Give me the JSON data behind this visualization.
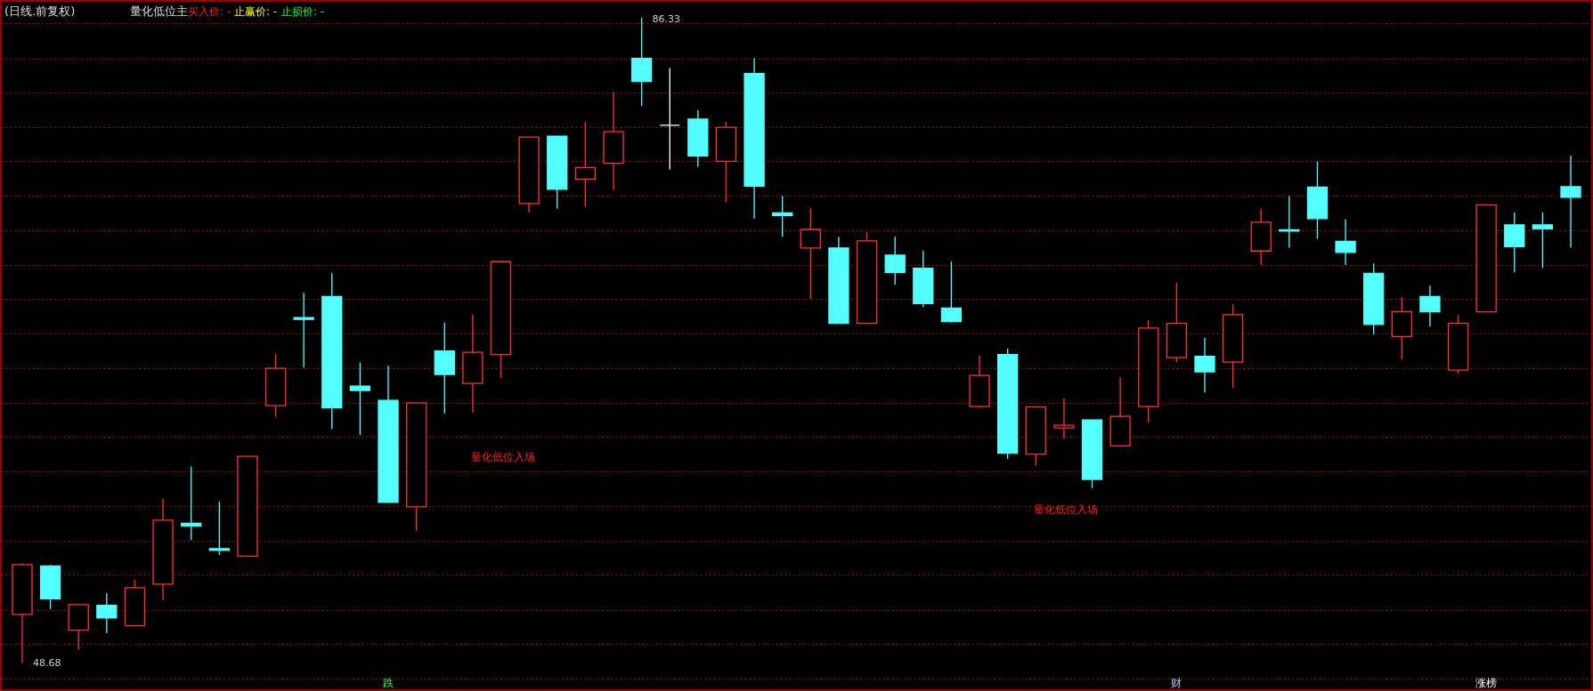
{
  "chart_data": {
    "type": "candlestick",
    "title": "(日线.前复权)",
    "subtitle": "量化低位主",
    "categories": [
      null,
      null,
      null,
      null,
      null,
      null,
      null,
      null,
      null,
      null,
      null,
      null,
      null,
      null,
      null,
      null,
      null,
      null,
      null,
      null,
      null,
      null,
      null,
      null,
      null,
      null,
      null,
      null,
      null,
      null,
      null,
      null,
      null,
      null,
      null,
      null,
      null,
      null,
      null,
      null,
      null,
      null,
      null,
      null,
      null,
      null,
      null,
      null,
      null,
      null,
      null,
      null,
      null,
      null,
      null,
      null
    ],
    "ohlc": [
      [
        51.52,
        54.5,
        48.68,
        54.42
      ],
      [
        54.34,
        54.4,
        51.83,
        52.43
      ],
      [
        50.59,
        52.09,
        49.45,
        52.09
      ],
      [
        52.04,
        52.76,
        50.43,
        51.31
      ],
      [
        50.85,
        53.54,
        50.85,
        53.07
      ],
      [
        53.28,
        58.25,
        52.35,
        57.01
      ],
      [
        56.83,
        60.15,
        55.85,
        56.67
      ],
      [
        55.35,
        58.1,
        54.99,
        55.25
      ],
      [
        54.91,
        60.74,
        54.91,
        60.74
      ],
      [
        63.69,
        66.72,
        63.02,
        65.87
      ],
      [
        68.82,
        70.27,
        65.92,
        68.72
      ],
      [
        70.06,
        71.41,
        62.32,
        63.56
      ],
      [
        64.83,
        66.21,
        61.98,
        64.57
      ],
      [
        64.0,
        66.02,
        58.05,
        58.05
      ],
      [
        57.79,
        63.85,
        56.39,
        63.85
      ],
      [
        66.88,
        68.54,
        63.23,
        65.51
      ],
      [
        64.99,
        69.0,
        63.3,
        66.8
      ],
      [
        66.67,
        72.09,
        65.3,
        72.09
      ],
      [
        75.48,
        79.36,
        74.96,
        79.36
      ],
      [
        79.41,
        79.41,
        75.17,
        76.31
      ],
      [
        76.9,
        80.24,
        75.27,
        77.58
      ],
      [
        77.83,
        81.98,
        76.26,
        79.67
      ],
      [
        83.95,
        86.33,
        81.18,
        82.6
      ],
      [
        80.04,
        83.38,
        77.47,
        80.04
      ],
      [
        80.4,
        80.92,
        77.63,
        78.25
      ],
      [
        77.94,
        80.24,
        75.56,
        79.93
      ],
      [
        83.07,
        83.95,
        74.6,
        76.49
      ],
      [
        74.93,
        75.92,
        73.54,
        74.78
      ],
      [
        72.89,
        75.22,
        69.91,
        73.97
      ],
      [
        72.89,
        73.54,
        68.49,
        68.49
      ],
      [
        68.49,
        73.82,
        68.49,
        73.3
      ],
      [
        72.47,
        73.54,
        70.74,
        71.46
      ],
      [
        71.7,
        72.73,
        69.44,
        69.65
      ],
      [
        69.39,
        72.09,
        68.54,
        68.59
      ],
      [
        63.64,
        66.62,
        63.56,
        65.46
      ],
      [
        66.67,
        67.03,
        60.58,
        60.92
      ],
      [
        60.87,
        63.61,
        60.2,
        63.61
      ],
      [
        62.4,
        64.11,
        61.75,
        62.55
      ],
      [
        62.86,
        62.86,
        58.88,
        59.39
      ],
      [
        61.34,
        65.33,
        61.34,
        63.07
      ],
      [
        63.64,
        68.67,
        62.71,
        68.22
      ],
      [
        66.49,
        70.84,
        66.23,
        68.49
      ],
      [
        66.57,
        67.66,
        64.47,
        65.66
      ],
      [
        66.23,
        69.6,
        64.73,
        69.0
      ],
      [
        72.71,
        75.17,
        71.9,
        74.39
      ],
      [
        73.95,
        75.92,
        72.91,
        73.87
      ],
      [
        76.44,
        77.94,
        73.43,
        74.6
      ],
      [
        73.28,
        74.57,
        71.9,
        72.63
      ],
      [
        71.41,
        71.98,
        67.84,
        68.43
      ],
      [
        67.73,
        70.01,
        66.39,
        69.18
      ],
      [
        70.06,
        70.69,
        68.3,
        69.16
      ],
      [
        65.77,
        68.98,
        65.56,
        68.49
      ],
      [
        69.16,
        75.4,
        69.16,
        75.4
      ],
      [
        74.24,
        74.96,
        71.46,
        72.97
      ],
      [
        74.24,
        74.96,
        71.72,
        74.0
      ],
      [
        76.46,
        78.28,
        72.91,
        75.84
      ]
    ],
    "colors": [
      "#ff3232",
      "#54ffff",
      "#ff3232",
      "#54ffff",
      "#ff3232",
      "#ff3232",
      "#54ffff",
      "#54ffff",
      "#ff3232",
      "#ff3232",
      "#54ffff",
      "#54ffff",
      "#54ffff",
      "#54ffff",
      "#ff3232",
      "#54ffff",
      "#ff3232",
      "#ff3232",
      "#ff3232",
      "#54ffff",
      "#ff3232",
      "#ff3232",
      "#54ffff",
      "#ffffff",
      "#54ffff",
      "#ff3232",
      "#54ffff",
      "#54ffff",
      "#ff3232",
      "#54ffff",
      "#ff3232",
      "#54ffff",
      "#54ffff",
      "#54ffff",
      "#ff3232",
      "#54ffff",
      "#ff3232",
      "#ff3232",
      "#54ffff",
      "#ff3232",
      "#ff3232",
      "#ff3232",
      "#54ffff",
      "#ff3232",
      "#ff3232",
      "#54ffff",
      "#54ffff",
      "#54ffff",
      "#54ffff",
      "#ff3232",
      "#54ffff",
      "#ff3232",
      "#ff3232",
      "#54ffff",
      "#54ffff",
      "#54ffff"
    ],
    "ylim": [
      47.1,
      87.3
    ],
    "yticks": [
      {
        "value": 86.02,
        "label": null
      },
      {
        "value": 83.95,
        "label": null
      },
      {
        "value": 81.98,
        "label": null
      },
      {
        "value": 79.93,
        "label": null
      },
      {
        "value": 77.94,
        "label": null
      },
      {
        "value": 75.92,
        "label": null
      },
      {
        "value": 73.92,
        "label": null
      },
      {
        "value": 71.9,
        "label": null
      },
      {
        "value": 69.91,
        "label": null
      },
      {
        "value": 67.89,
        "label": null
      },
      {
        "value": 65.89,
        "label": null
      },
      {
        "value": 63.87,
        "label": null
      },
      {
        "value": 61.88,
        "label": null
      },
      {
        "value": 59.86,
        "label": null
      },
      {
        "value": 57.84,
        "label": null
      },
      {
        "value": 55.82,
        "label": null
      },
      {
        "value": 53.83,
        "label": null
      },
      {
        "value": 51.78,
        "label": null
      },
      {
        "value": 49.78,
        "label": null
      },
      {
        "value": 47.76,
        "label": null
      }
    ],
    "grid": "y",
    "annotations": [
      "买入价: -",
      "止赢价: -",
      "止损价: -",
      "86.33",
      "48.68",
      "量化低位入场",
      "量化低位入场",
      "跌",
      "财",
      "涨榜"
    ]
  }
}
